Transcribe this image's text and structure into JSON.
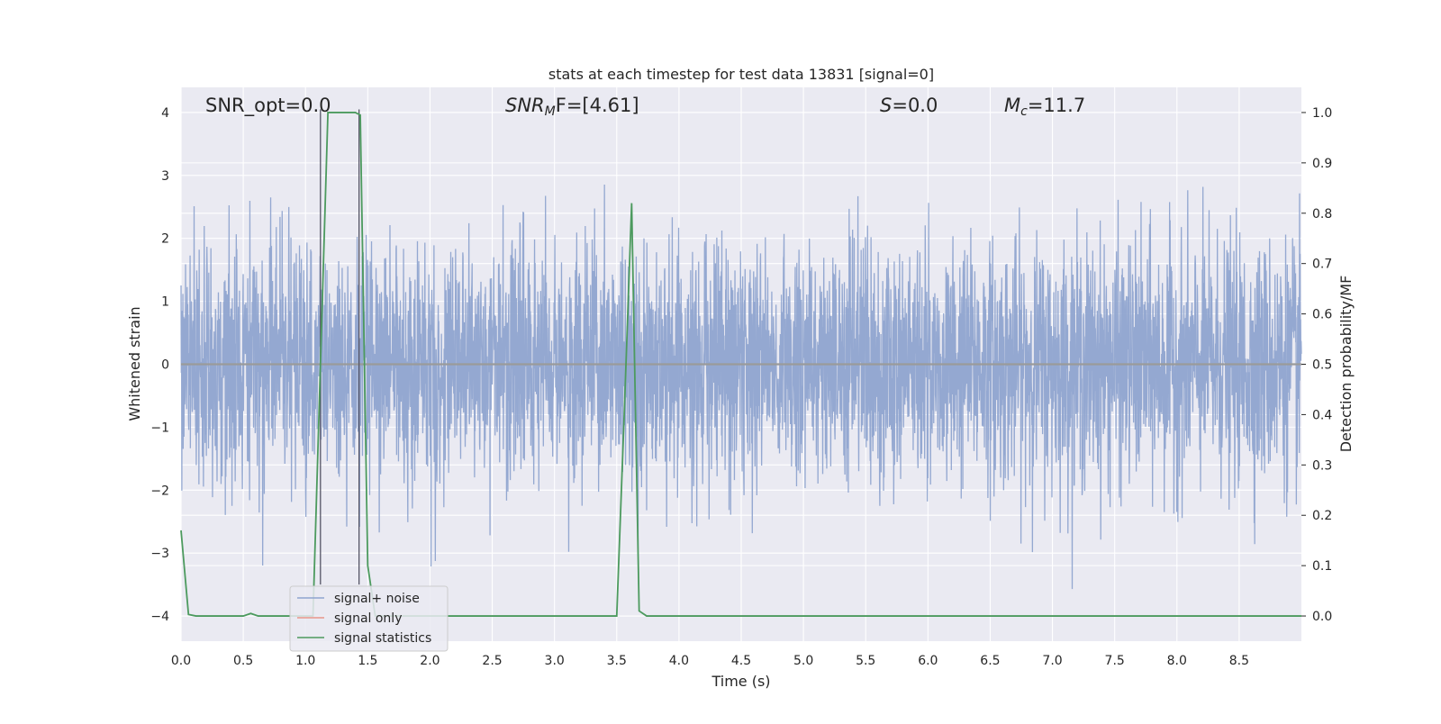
{
  "chart_data": {
    "type": "line",
    "title": "stats at each timestep for test data 13831 [signal=0]",
    "xlabel": "Time (s)",
    "ylabel": "Whitened strain",
    "y2label": "Detection probability/MF",
    "xlim": [
      0,
      9.0
    ],
    "ylim": [
      -4.4,
      4.4
    ],
    "y2lim": [
      -0.05,
      1.05
    ],
    "x_ticks": [
      "0.0",
      "0.5",
      "1.0",
      "1.5",
      "2.0",
      "2.5",
      "3.0",
      "3.5",
      "4.0",
      "4.5",
      "5.0",
      "5.5",
      "6.0",
      "6.5",
      "7.0",
      "7.5",
      "8.0",
      "8.5"
    ],
    "y_ticks": [
      "4",
      "3",
      "2",
      "1",
      "0",
      "−1",
      "−2",
      "−3",
      "−4"
    ],
    "y2_ticks": [
      "1.0",
      "0.9",
      "0.8",
      "0.7",
      "0.6",
      "0.5",
      "0.4",
      "0.3",
      "0.2",
      "0.1",
      "0.0"
    ],
    "grid": true,
    "legend_position": "lower-left",
    "annotations": {
      "snr_opt": "SNR_opt=0.0",
      "snr_mf_main": "SNR",
      "snr_mf_sub": "M",
      "snr_mf_tail": "F=[4.61]",
      "s_main": "S",
      "s_tail": "=0.0",
      "mc_main": "M",
      "mc_sub": "c",
      "mc_tail": "=11.7"
    },
    "vertical_markers_x": [
      1.12,
      1.43
    ],
    "series": [
      {
        "name": "signal+ noise",
        "color": "#8fa4cf",
        "description_values": "whitened noise, approximately Gaussian with sigma about 1, range -3.8 to 3.9"
      },
      {
        "name": "signal only",
        "color": "#e8968a",
        "x": [
          0,
          9.0
        ],
        "y": [
          0,
          0
        ]
      },
      {
        "name": "signal statistics",
        "color": "#4c9a5e",
        "axis": "right",
        "x": [
          0.0,
          0.06,
          0.12,
          0.5,
          0.56,
          0.62,
          1.06,
          1.12,
          1.18,
          1.4,
          1.44,
          1.5,
          1.56,
          3.5,
          3.56,
          3.62,
          3.68,
          3.74,
          9.0
        ],
        "y": [
          0.17,
          0.003,
          0.0,
          0.0,
          0.005,
          0.0,
          0.0,
          0.5,
          1.0,
          1.0,
          0.995,
          0.1,
          0.0,
          0.0,
          0.4,
          0.82,
          0.01,
          0.0,
          0.0
        ]
      }
    ]
  }
}
